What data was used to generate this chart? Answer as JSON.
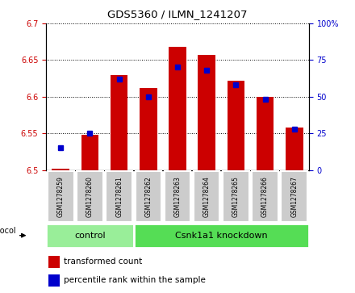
{
  "title": "GDS5360 / ILMN_1241207",
  "samples": [
    "GSM1278259",
    "GSM1278260",
    "GSM1278261",
    "GSM1278262",
    "GSM1278263",
    "GSM1278264",
    "GSM1278265",
    "GSM1278266",
    "GSM1278267"
  ],
  "transformed_count": [
    6.502,
    6.548,
    6.63,
    6.612,
    6.668,
    6.657,
    6.622,
    6.6,
    6.558
  ],
  "percentile_rank": [
    15,
    25,
    62,
    50,
    70,
    68,
    58,
    48,
    28
  ],
  "ylim_left": [
    6.5,
    6.7
  ],
  "ylim_right": [
    0,
    100
  ],
  "yticks_left": [
    6.5,
    6.55,
    6.6,
    6.65,
    6.7
  ],
  "yticks_right": [
    0,
    25,
    50,
    75,
    100
  ],
  "bar_color": "#cc0000",
  "dot_color": "#0000cc",
  "bar_bottom": 6.5,
  "left_label_color": "#cc0000",
  "right_label_color": "#0000cc",
  "legend_bar_label": "transformed count",
  "legend_dot_label": "percentile rank within the sample",
  "ctrl_color": "#99ee99",
  "kd_color": "#55dd55",
  "sample_box_color": "#cccccc"
}
